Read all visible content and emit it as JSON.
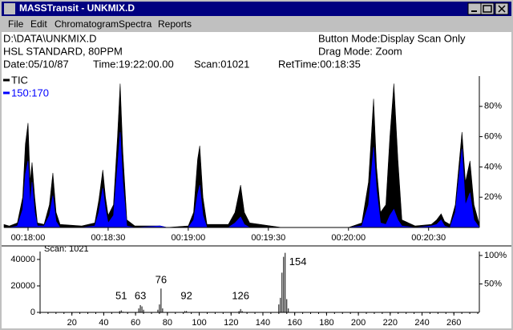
{
  "window": {
    "title": "MASSTransit - UNKMIX.D",
    "menu": [
      "File",
      "Edit",
      "Chromatogram",
      "Spectra",
      "Reports"
    ]
  },
  "info": {
    "file": "D:\\DATA\\UNKMIX.D",
    "sample": "HSL STANDARD, 80PPM",
    "date": "Date:05/10/87",
    "time": "Time:19:22:00.00",
    "scan": "Scan:01021",
    "ret_time": "RetTime:00:18:35",
    "button_mode": "Button Mode:Display Scan Only",
    "drag_mode": "Drag Mode:  Zoom"
  },
  "chromatogram": {
    "type": "area",
    "x": [
      1071,
      1073,
      1076,
      1078,
      1079,
      1080,
      1080.8,
      1081.5,
      1082.5,
      1083.5,
      1086,
      1088,
      1089.3,
      1090.5,
      1092,
      1100,
      1105,
      1106.5,
      1108,
      1109,
      1110,
      1112,
      1113.5,
      1114.5,
      1115.5,
      1117,
      1120,
      1129.5,
      1132,
      1140,
      1142,
      1143.5,
      1144.3,
      1145.5,
      1147,
      1155,
      1157.5,
      1159.6,
      1161,
      1163,
      1175,
      1200,
      1205,
      1207.5,
      1209.4,
      1210.5,
      1212,
      1214,
      1215.5,
      1217,
      1218.5,
      1220,
      1225,
      1231,
      1233,
      1234.7,
      1236,
      1238,
      1240,
      1242.5,
      1243.8,
      1245.5,
      1247,
      1249
    ],
    "series": [
      {
        "name": "TIC",
        "color": "#000000",
        "values": [
          2,
          1,
          3,
          20,
          55,
          69,
          30,
          43,
          20,
          3,
          2,
          15,
          36,
          10,
          2,
          1,
          3,
          18,
          38,
          20,
          8,
          15,
          60,
          95,
          50,
          5,
          1,
          1,
          0,
          1,
          10,
          45,
          54,
          20,
          2,
          2,
          10,
          28,
          10,
          3,
          0,
          0,
          3,
          30,
          85,
          40,
          10,
          15,
          60,
          95,
          45,
          5,
          1,
          2,
          5,
          9,
          4,
          2,
          15,
          63,
          30,
          44,
          15,
          2
        ]
      },
      {
        "name": "150:170",
        "color": "#0000ff",
        "values": [
          0,
          0,
          1,
          12,
          35,
          44,
          15,
          30,
          10,
          1,
          1,
          8,
          21,
          4,
          0,
          0,
          1,
          10,
          26,
          12,
          3,
          8,
          40,
          63,
          30,
          1,
          0,
          1,
          0,
          0,
          5,
          22,
          28,
          8,
          0,
          0,
          3,
          7,
          2,
          0,
          0,
          0,
          1,
          15,
          53,
          25,
          3,
          2,
          8,
          12,
          5,
          1,
          0,
          1,
          2,
          5,
          1,
          0,
          10,
          52,
          15,
          23,
          5,
          0
        ]
      }
    ],
    "xlim": [
      1071,
      1249
    ],
    "xticks": [
      {
        "value": 1080,
        "label": "00:18:00"
      },
      {
        "value": 1110,
        "label": "00:18:30"
      },
      {
        "value": 1140,
        "label": "00:19:00"
      },
      {
        "value": 1170,
        "label": "00:19:30"
      },
      {
        "value": 1200,
        "label": "00:20:00"
      },
      {
        "value": 1230,
        "label": "00:20:30"
      }
    ],
    "ylim": [
      0,
      100
    ],
    "yticks": [
      {
        "value": 20,
        "label": "20%"
      },
      {
        "value": 40,
        "label": "40%"
      },
      {
        "value": 60,
        "label": "60%"
      },
      {
        "value": 80,
        "label": "80%"
      }
    ]
  },
  "spectrum": {
    "type": "bar",
    "title": "Scan: 1021",
    "color": "#000000",
    "x": [
      50,
      51,
      52,
      62,
      63,
      64,
      65,
      74,
      75,
      76,
      77,
      91,
      92,
      125,
      126,
      127,
      150,
      151,
      152,
      153,
      154,
      155,
      156
    ],
    "values": [
      1000,
      1500,
      500,
      3000,
      5500,
      4500,
      2000,
      2000,
      6000,
      18000,
      3000,
      1000,
      1000,
      1000,
      2500,
      1000,
      6000,
      11000,
      30000,
      42000,
      45000,
      10000,
      3000
    ],
    "peak_labels": [
      51,
      63,
      76,
      92,
      126,
      154
    ],
    "xlim": [
      0,
      276
    ],
    "xticks": [
      20,
      40,
      60,
      80,
      100,
      120,
      140,
      160,
      180,
      200,
      220,
      240,
      260
    ],
    "ylim": [
      0,
      46000
    ],
    "yticks": [
      0,
      20000,
      40000
    ],
    "y2lim": [
      0,
      107
    ],
    "y2ticks": [
      {
        "value": 50,
        "label": "50%"
      },
      {
        "value": 100,
        "label": "100%"
      }
    ]
  }
}
